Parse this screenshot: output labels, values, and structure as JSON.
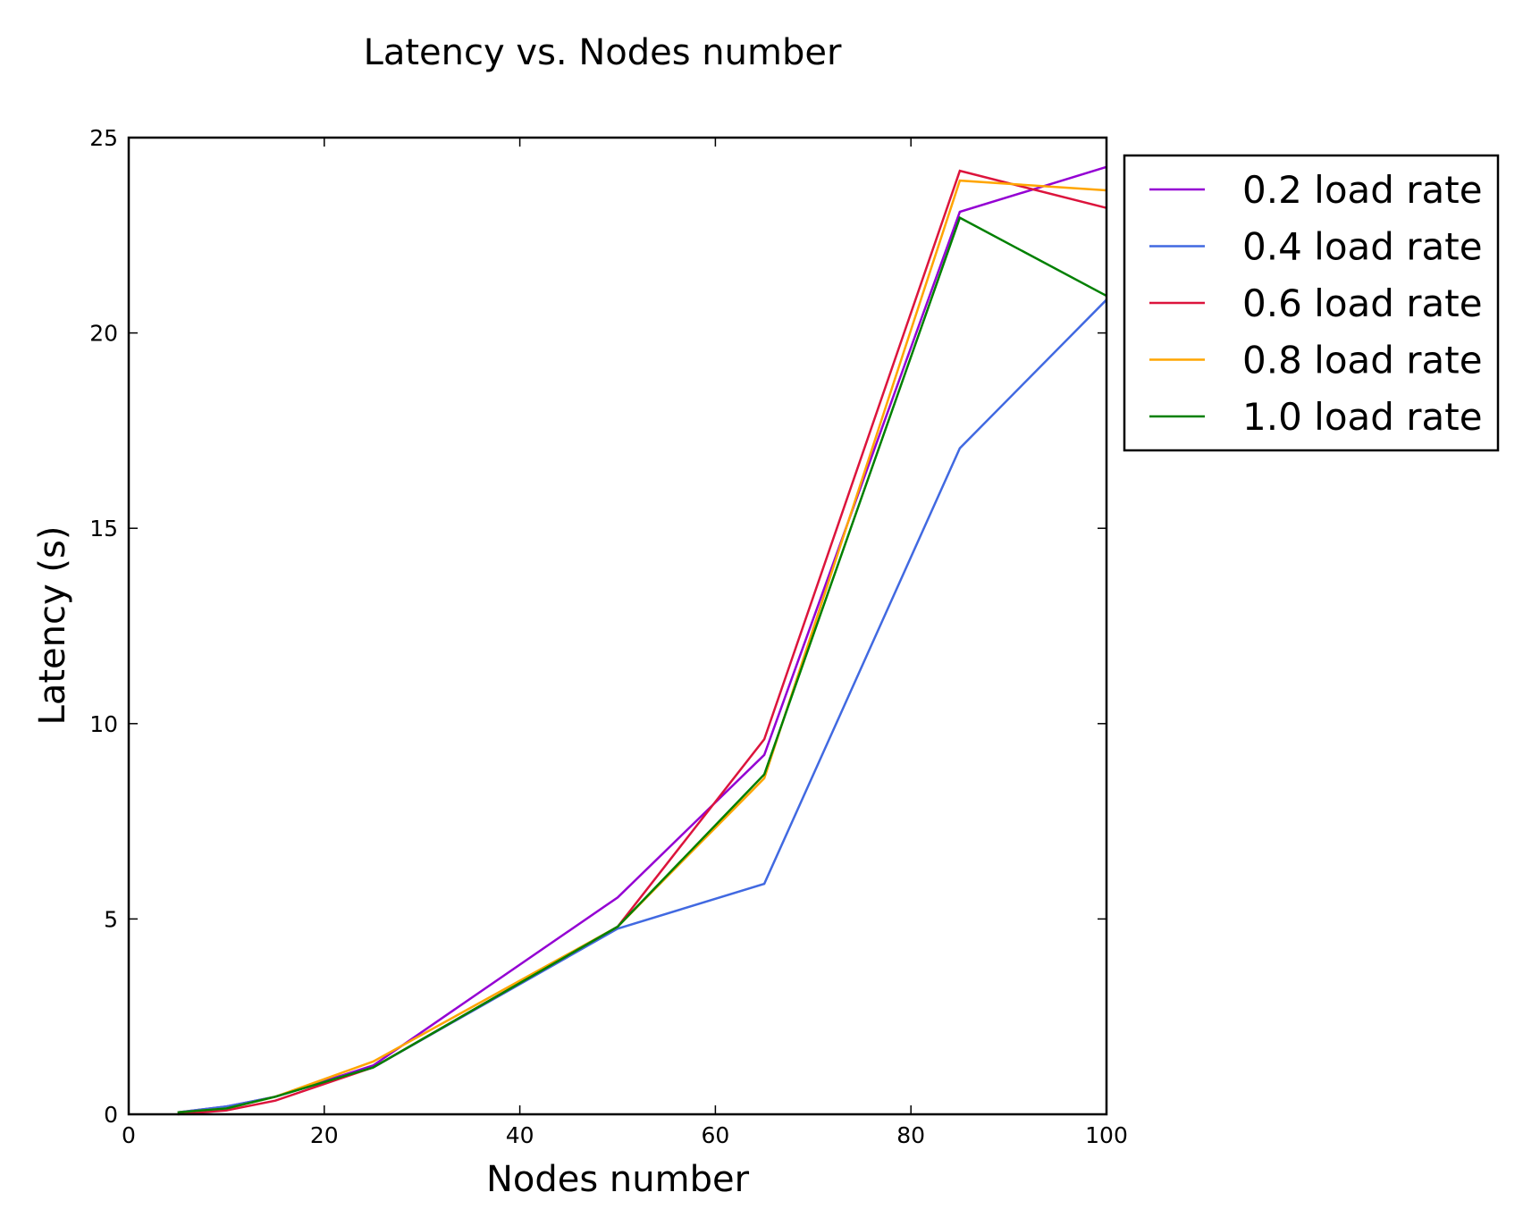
{
  "chart_data": {
    "type": "line",
    "title": "Latency vs. Nodes number",
    "xlabel": "Nodes number",
    "ylabel": "Latency (s)",
    "xlim": [
      0,
      100
    ],
    "ylim": [
      0,
      25
    ],
    "xticks": [
      0,
      20,
      40,
      60,
      80,
      100
    ],
    "yticks": [
      0,
      5,
      10,
      15,
      20,
      25
    ],
    "grid": false,
    "legend_position": "outside-right-top",
    "x": [
      5,
      10,
      15,
      25,
      50,
      65,
      85,
      100
    ],
    "series": [
      {
        "name": "0.2 load rate",
        "color": "#9400D3",
        "values": [
          0.05,
          0.2,
          0.45,
          1.25,
          5.55,
          9.2,
          23.1,
          24.25
        ]
      },
      {
        "name": "0.4 load rate",
        "color": "#4169E1",
        "values": [
          0.05,
          0.2,
          0.45,
          1.2,
          4.75,
          5.9,
          17.05,
          20.85
        ]
      },
      {
        "name": "0.6 load rate",
        "color": "#DC143C",
        "values": [
          0.0,
          0.1,
          0.35,
          1.2,
          4.8,
          9.6,
          24.15,
          23.2
        ]
      },
      {
        "name": "0.8 load rate",
        "color": "#FFA500",
        "values": [
          0.05,
          0.15,
          0.45,
          1.35,
          4.8,
          8.6,
          23.9,
          23.65
        ]
      },
      {
        "name": "1.0 load rate",
        "color": "#008000",
        "values": [
          0.05,
          0.15,
          0.45,
          1.2,
          4.8,
          8.7,
          22.95,
          20.95
        ]
      }
    ]
  }
}
